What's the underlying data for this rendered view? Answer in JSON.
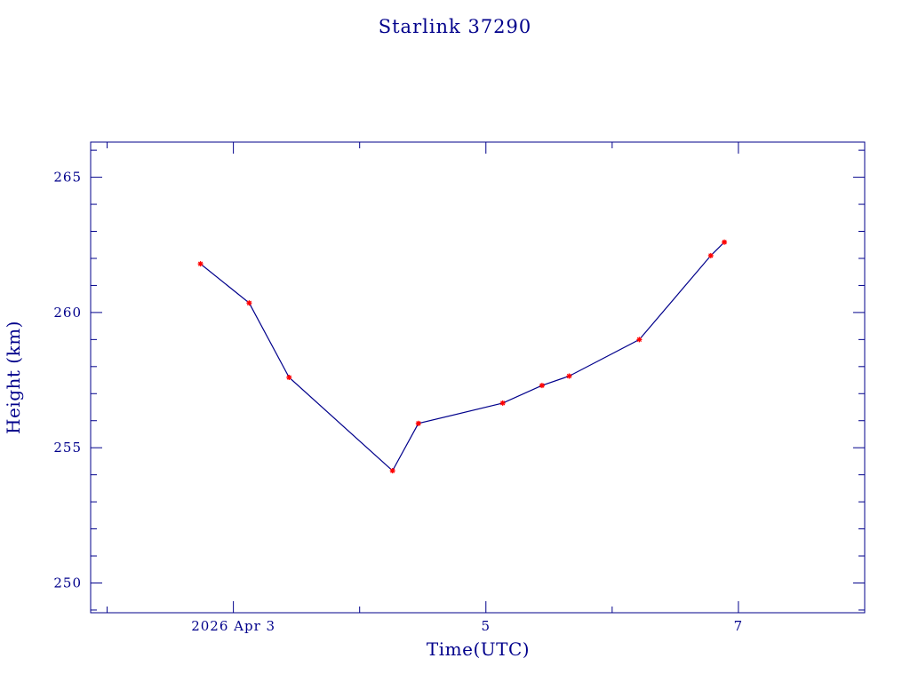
{
  "chart_data": {
    "type": "line",
    "title": "Starlink 37290",
    "xlabel": "Time(UTC)",
    "ylabel": "Height (km)",
    "x_unit": "days",
    "xlim": [
      "2026-04-01T20:52",
      "2026-04-08T00:00"
    ],
    "ylim": [
      248.9,
      266.3
    ],
    "x_tick_labels": [
      {
        "at": "2026-04-03T00:00",
        "label": "2026 Apr  3"
      },
      {
        "at": "2026-04-05T00:00",
        "label": "5"
      },
      {
        "at": "2026-04-07T00:00",
        "label": "7"
      }
    ],
    "y_ticks": [
      250,
      255,
      260,
      265
    ],
    "grid": false,
    "colors": {
      "axes": "#00008b",
      "line": "#00008b",
      "markers": "#ff0000"
    },
    "series": [
      {
        "marker": "star",
        "x": [
          "2026-04-02T17:45",
          "2026-04-03T03:00",
          "2026-04-03T10:35",
          "2026-04-04T06:15",
          "2026-04-04T11:10",
          "2026-04-05T03:12",
          "2026-04-05T10:40",
          "2026-04-05T15:50",
          "2026-04-06T05:10",
          "2026-04-06T18:45",
          "2026-04-06T21:20"
        ],
        "y": [
          261.8,
          260.35,
          257.6,
          254.15,
          255.9,
          256.65,
          257.3,
          257.65,
          259.0,
          262.1,
          262.6
        ]
      }
    ]
  }
}
